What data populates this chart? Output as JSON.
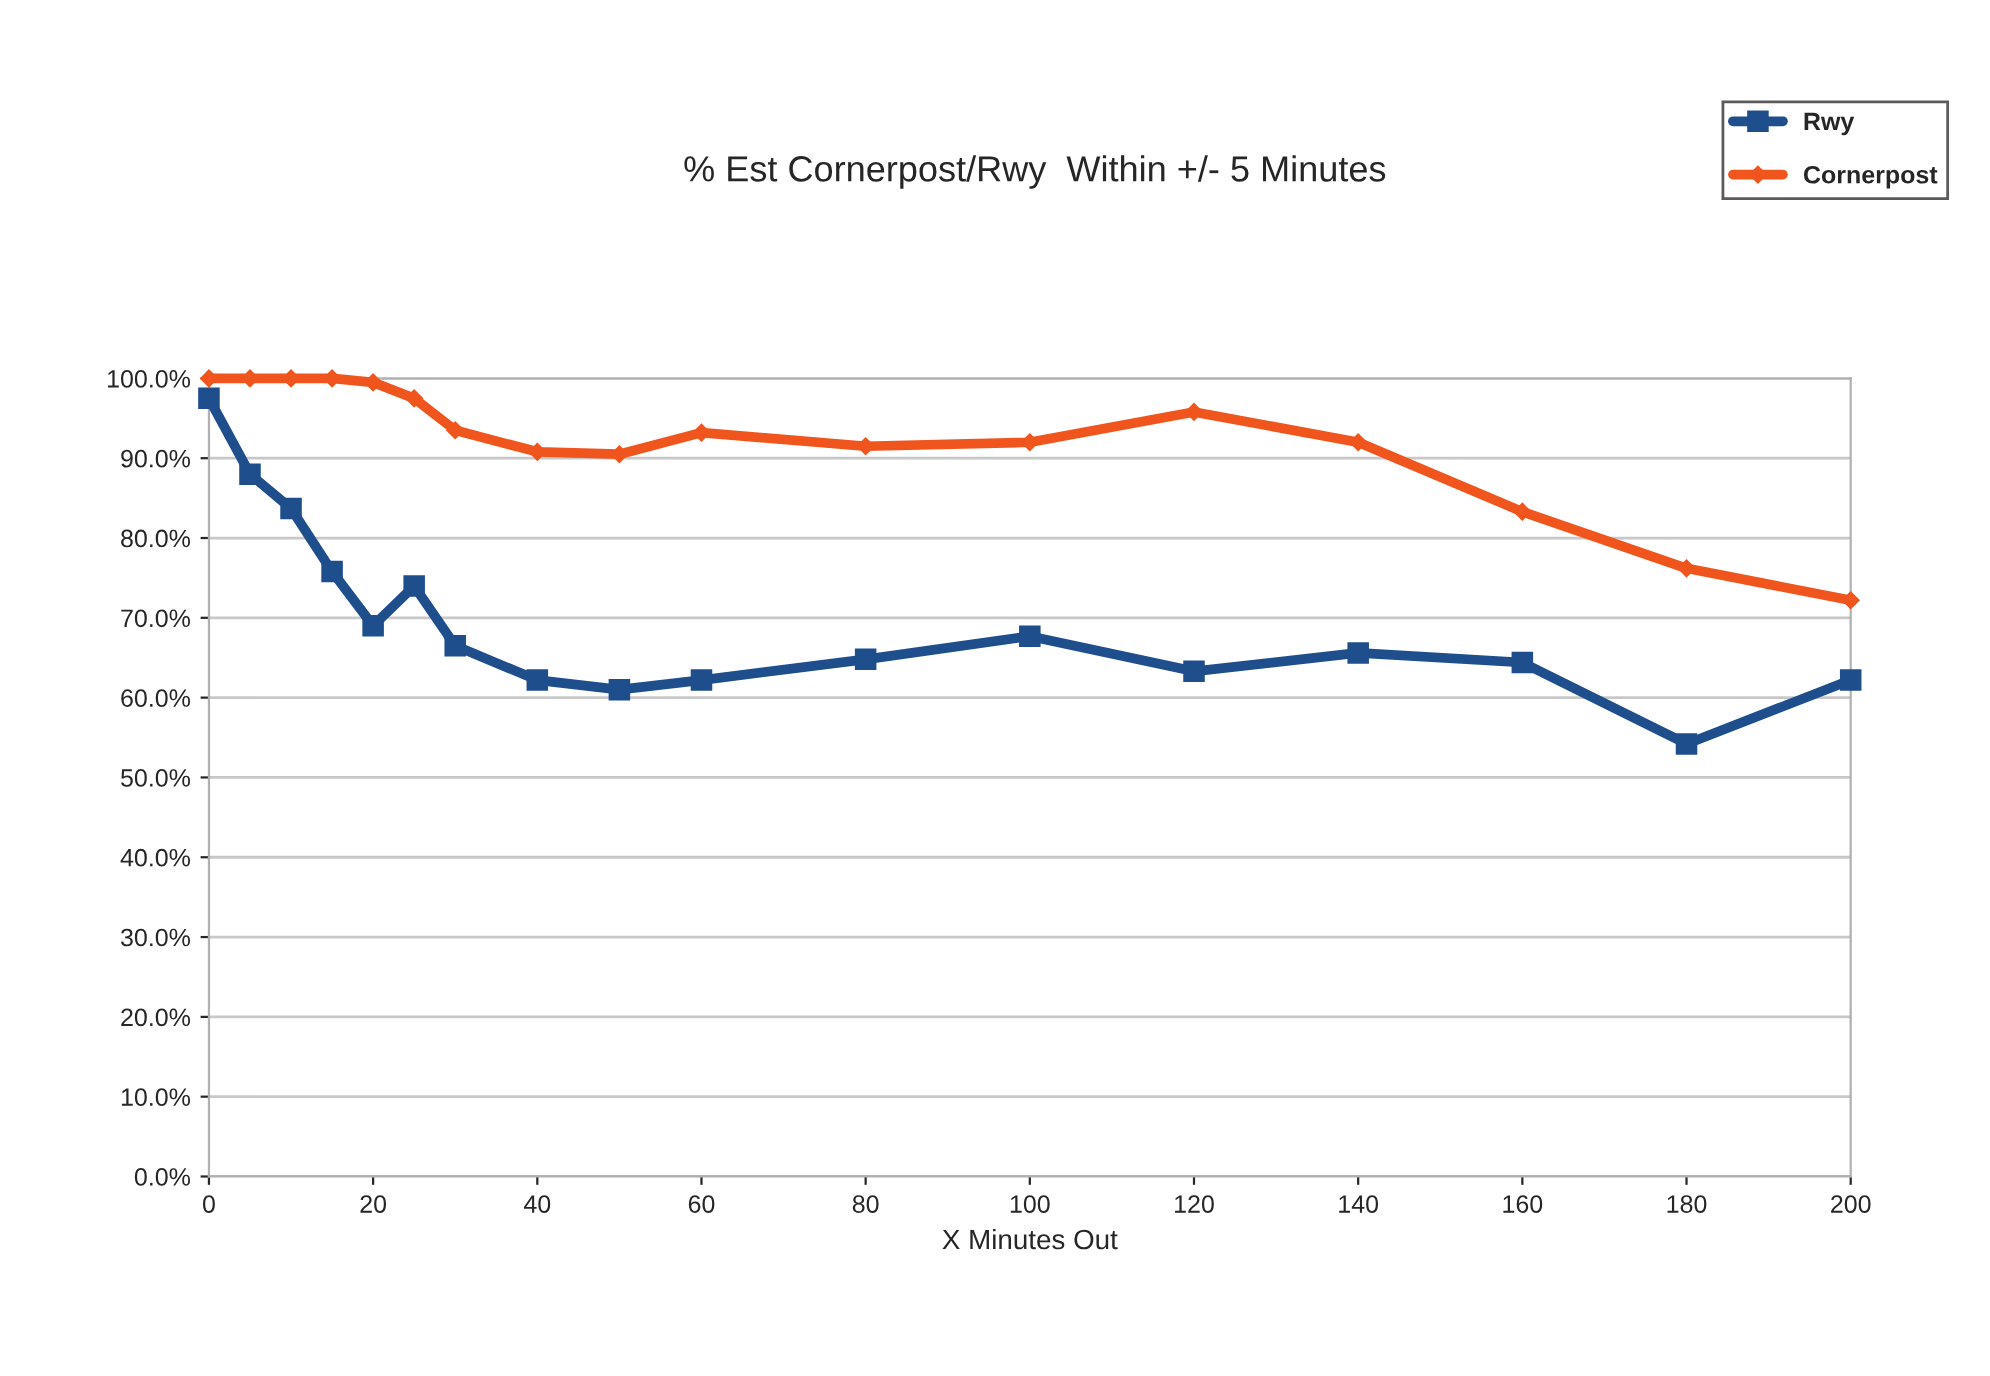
{
  "chart_data": {
    "type": "line",
    "title": "% Est Cornerpost/Rwy  Within +/- 5 Minutes",
    "xlabel": "X Minutes Out",
    "x": [
      0,
      5,
      10,
      15,
      20,
      25,
      30,
      40,
      50,
      60,
      80,
      100,
      120,
      140,
      160,
      180,
      200
    ],
    "series": [
      {
        "name": "Rwy",
        "color": "#1f4e8c",
        "marker": "square",
        "values": [
          0.975,
          0.88,
          0.837,
          0.758,
          0.69,
          0.74,
          0.665,
          0.622,
          0.61,
          0.622,
          0.648,
          0.677,
          0.633,
          0.656,
          0.644,
          0.542,
          0.622
        ]
      },
      {
        "name": "Cornerpost",
        "color": "#f0551e",
        "marker": "diamond",
        "values": [
          1.0,
          1.0,
          1.0,
          1.0,
          0.995,
          0.975,
          0.935,
          0.908,
          0.905,
          0.932,
          0.915,
          0.92,
          0.958,
          0.92,
          0.833,
          0.762,
          0.722
        ]
      }
    ],
    "xlim": [
      0,
      200
    ],
    "xticks": [
      0,
      20,
      40,
      60,
      80,
      100,
      120,
      140,
      160,
      180,
      200
    ],
    "ylim": [
      0,
      1
    ],
    "yticks": [
      {
        "value": 0,
        "label": "0.0%"
      },
      {
        "value": 0.1,
        "label": "10.0%"
      },
      {
        "value": 0.2,
        "label": "20.0%"
      },
      {
        "value": 0.3,
        "label": "30.0%"
      },
      {
        "value": 0.4,
        "label": "40.0%"
      },
      {
        "value": 0.5,
        "label": "50.0%"
      },
      {
        "value": 0.6,
        "label": "60.0%"
      },
      {
        "value": 0.7,
        "label": "70.0%"
      },
      {
        "value": 0.8,
        "label": "80.0%"
      },
      {
        "value": 0.9,
        "label": "90.0%"
      },
      {
        "value": 1.0,
        "label": "100.0%"
      }
    ],
    "grid": "y",
    "legend": "top right",
    "line_style": "solid"
  }
}
